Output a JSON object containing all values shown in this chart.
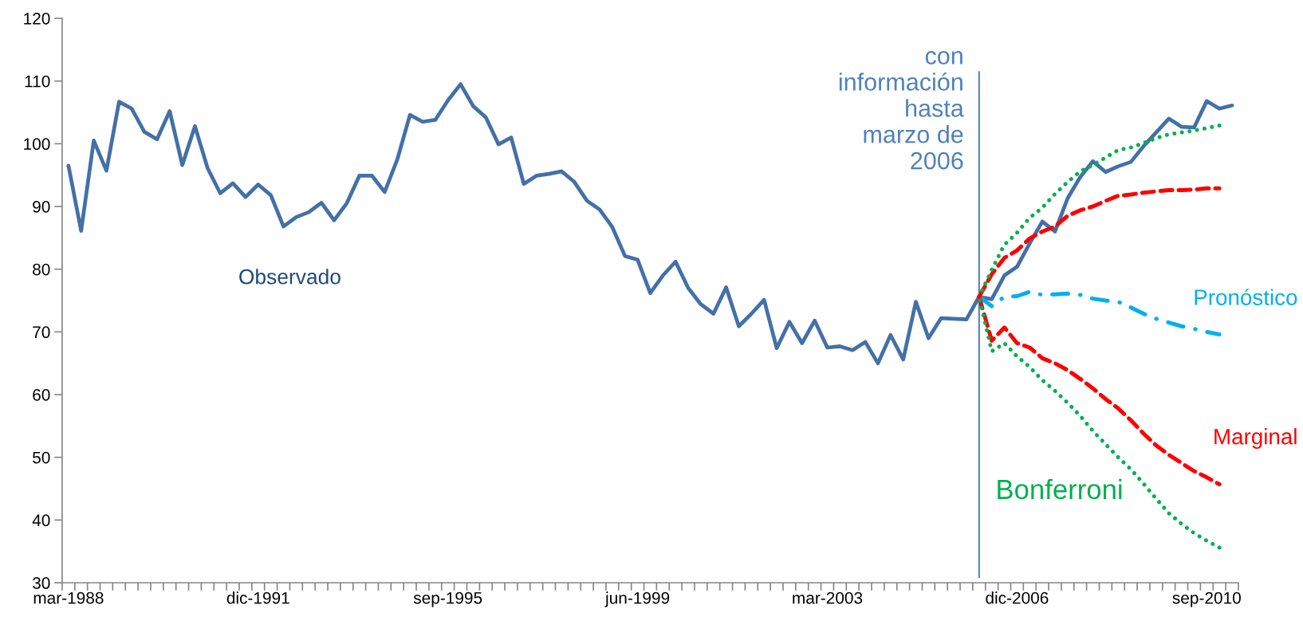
{
  "chart_data": {
    "type": "line",
    "categories": [
      "mar-1988",
      null,
      null,
      null,
      null,
      null,
      null,
      null,
      null,
      null,
      null,
      null,
      null,
      null,
      null,
      "dic-1991",
      null,
      null,
      null,
      null,
      null,
      null,
      null,
      null,
      null,
      null,
      null,
      null,
      null,
      null,
      "sep-1995",
      null,
      null,
      null,
      null,
      null,
      null,
      null,
      null,
      null,
      null,
      null,
      null,
      null,
      null,
      "jun-1999",
      null,
      null,
      null,
      null,
      null,
      null,
      null,
      null,
      null,
      null,
      null,
      null,
      null,
      null,
      "mar-2003",
      null,
      null,
      null,
      null,
      null,
      null,
      null,
      null,
      null,
      null,
      null,
      null,
      null,
      null,
      "dic-2006",
      null,
      null,
      null,
      null,
      null,
      null,
      null,
      null,
      null,
      null,
      null,
      null,
      null,
      null,
      "sep-2010",
      null,
      null
    ],
    "ylim": [
      30,
      120
    ],
    "yticks": [
      30,
      40,
      50,
      60,
      70,
      80,
      90,
      100,
      110,
      120
    ],
    "grid": false,
    "legend": false,
    "marker": "none",
    "series": [
      {
        "name": "Observado",
        "color": "#4470a8",
        "line_style": "solid",
        "values": [
          96.5,
          86.1,
          100.5,
          95.7,
          106.7,
          105.6,
          101.9,
          100.7,
          105.2,
          96.6,
          102.8,
          96.1,
          92.1,
          93.7,
          91.5,
          93.5,
          91.8,
          86.8,
          88.3,
          89.1,
          90.6,
          87.8,
          90.5,
          94.9,
          94.9,
          92.3,
          97.5,
          104.6,
          103.5,
          103.8,
          106.9,
          109.5,
          106.0,
          104.2,
          99.9,
          101.0,
          93.6,
          94.9,
          95.2,
          95.6,
          93.9,
          90.9,
          89.5,
          86.7,
          82.1,
          81.5,
          76.2,
          79.0,
          81.2,
          77.0,
          74.4,
          72.9,
          77.1,
          70.9,
          72.9,
          75.1,
          67.4,
          71.6,
          68.2,
          71.8,
          67.5,
          67.7,
          67.1,
          68.4,
          65.0,
          69.5,
          65.6,
          74.8,
          69.0,
          72.2,
          72.1,
          72.0,
          75.6,
          75.2,
          79.0,
          80.4,
          84.1,
          87.6,
          86.0,
          91.3,
          94.7,
          97.2,
          95.5,
          96.4,
          97.1,
          99.6,
          101.8,
          104.0,
          102.7,
          102.6,
          106.8,
          105.6,
          106.1
        ]
      },
      {
        "name": "Pronóstico",
        "color": "#00b0f0",
        "line_style": "dashdot",
        "values": [
          null,
          null,
          null,
          null,
          null,
          null,
          null,
          null,
          null,
          null,
          null,
          null,
          null,
          null,
          null,
          null,
          null,
          null,
          null,
          null,
          null,
          null,
          null,
          null,
          null,
          null,
          null,
          null,
          null,
          null,
          null,
          null,
          null,
          null,
          null,
          null,
          null,
          null,
          null,
          null,
          null,
          null,
          null,
          null,
          null,
          null,
          null,
          null,
          null,
          null,
          null,
          null,
          null,
          null,
          null,
          null,
          null,
          null,
          null,
          null,
          null,
          null,
          null,
          null,
          null,
          null,
          null,
          null,
          null,
          null,
          null,
          null,
          75.6,
          74.1,
          75.6,
          75.7,
          76.4,
          75.9,
          76.0,
          76.1,
          75.9,
          75.3,
          75.0,
          74.8,
          73.9,
          72.9,
          72.1,
          71.5,
          70.9,
          70.5,
          70.0,
          69.6,
          null
        ]
      },
      {
        "name": "Marginal",
        "color": "#ff0000",
        "line_style": "dashed",
        "values": [
          null,
          null,
          null,
          null,
          null,
          null,
          null,
          null,
          null,
          null,
          null,
          null,
          null,
          null,
          null,
          null,
          null,
          null,
          null,
          null,
          null,
          null,
          null,
          null,
          null,
          null,
          null,
          null,
          null,
          null,
          null,
          null,
          null,
          null,
          null,
          null,
          null,
          null,
          null,
          null,
          null,
          null,
          null,
          null,
          null,
          null,
          null,
          null,
          null,
          null,
          null,
          null,
          null,
          null,
          null,
          null,
          null,
          null,
          null,
          null,
          null,
          null,
          null,
          null,
          null,
          null,
          null,
          null,
          null,
          null,
          null,
          null,
          75.6,
          68.6,
          70.7,
          68.2,
          67.5,
          65.8,
          65.0,
          63.9,
          62.5,
          61.0,
          59.3,
          57.8,
          55.9,
          53.8,
          51.9,
          50.4,
          49.1,
          47.8,
          46.8,
          45.7,
          null
        ]
      },
      {
        "color": "#ff0000",
        "line_style": "dashed",
        "values": [
          null,
          null,
          null,
          null,
          null,
          null,
          null,
          null,
          null,
          null,
          null,
          null,
          null,
          null,
          null,
          null,
          null,
          null,
          null,
          null,
          null,
          null,
          null,
          null,
          null,
          null,
          null,
          null,
          null,
          null,
          null,
          null,
          null,
          null,
          null,
          null,
          null,
          null,
          null,
          null,
          null,
          null,
          null,
          null,
          null,
          null,
          null,
          null,
          null,
          null,
          null,
          null,
          null,
          null,
          null,
          null,
          null,
          null,
          null,
          null,
          null,
          null,
          null,
          null,
          null,
          null,
          null,
          null,
          null,
          null,
          null,
          null,
          75.6,
          79.2,
          81.8,
          83.0,
          84.9,
          86.0,
          86.8,
          88.5,
          89.4,
          90.0,
          90.9,
          91.7,
          91.9,
          92.2,
          92.4,
          92.6,
          92.6,
          92.7,
          92.9,
          92.9,
          null
        ]
      },
      {
        "name": "Bonferroni",
        "color": "#00b050",
        "line_style": "dotted",
        "values": [
          null,
          null,
          null,
          null,
          null,
          null,
          null,
          null,
          null,
          null,
          null,
          null,
          null,
          null,
          null,
          null,
          null,
          null,
          null,
          null,
          null,
          null,
          null,
          null,
          null,
          null,
          null,
          null,
          null,
          null,
          null,
          null,
          null,
          null,
          null,
          null,
          null,
          null,
          null,
          null,
          null,
          null,
          null,
          null,
          null,
          null,
          null,
          null,
          null,
          null,
          null,
          null,
          null,
          null,
          null,
          null,
          null,
          null,
          null,
          null,
          null,
          null,
          null,
          null,
          null,
          null,
          null,
          null,
          null,
          null,
          null,
          null,
          75.6,
          66.9,
          68.2,
          66.1,
          64.4,
          62.3,
          60.6,
          58.7,
          56.6,
          54.2,
          52.1,
          50.0,
          48.1,
          45.8,
          43.4,
          41.1,
          39.4,
          37.9,
          36.7,
          35.6,
          null
        ]
      },
      {
        "color": "#00b050",
        "line_style": "dotted",
        "values": [
          null,
          null,
          null,
          null,
          null,
          null,
          null,
          null,
          null,
          null,
          null,
          null,
          null,
          null,
          null,
          null,
          null,
          null,
          null,
          null,
          null,
          null,
          null,
          null,
          null,
          null,
          null,
          null,
          null,
          null,
          null,
          null,
          null,
          null,
          null,
          null,
          null,
          null,
          null,
          null,
          null,
          null,
          null,
          null,
          null,
          null,
          null,
          null,
          null,
          null,
          null,
          null,
          null,
          null,
          null,
          null,
          null,
          null,
          null,
          null,
          null,
          null,
          null,
          null,
          null,
          null,
          null,
          null,
          null,
          null,
          null,
          null,
          75.6,
          79.9,
          83.9,
          85.8,
          88.2,
          89.8,
          92.0,
          93.9,
          95.6,
          96.6,
          97.8,
          99.0,
          99.4,
          100.1,
          100.9,
          101.5,
          101.8,
          102.1,
          102.5,
          102.9,
          null
        ]
      }
    ],
    "annotations": [
      "con\ninformación\nhasta\nmarzo de\n2006"
    ]
  }
}
